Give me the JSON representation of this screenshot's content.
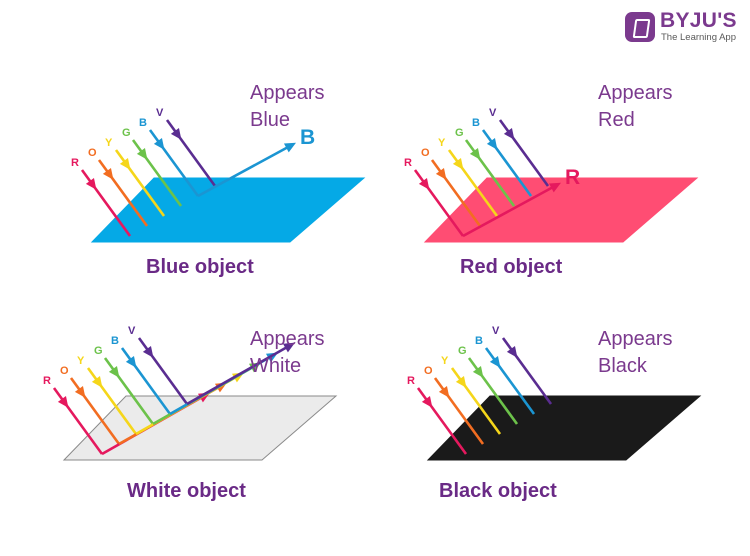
{
  "logo": {
    "name": "BYJU'S",
    "tagline": "The Learning App"
  },
  "colors": {
    "R": "#e5195e",
    "O": "#f26d21",
    "Y": "#f5d61a",
    "G": "#6cc24a",
    "B": "#1b95d2",
    "V": "#5a2d91",
    "text_purple": "#7b3a8e"
  },
  "ray_labels": [
    "R",
    "O",
    "Y",
    "G",
    "B",
    "V"
  ],
  "panels": [
    {
      "id": "blue",
      "appears_line1": "Appears",
      "appears_line2": "Blue",
      "caption": "Blue object",
      "surface_color": "#05a9e6",
      "reflected": [
        "B"
      ],
      "out_letter": "B"
    },
    {
      "id": "red",
      "appears_line1": "Appears",
      "appears_line2": "Red",
      "caption": "Red object",
      "surface_color": "#ff4d73",
      "reflected": [
        "R"
      ],
      "out_letter": "R"
    },
    {
      "id": "white",
      "appears_line1": "Appears",
      "appears_line2": "White",
      "caption": "White object",
      "surface_color": "#ebebeb",
      "reflected": [
        "R",
        "O",
        "Y",
        "G",
        "B",
        "V"
      ],
      "out_letter": ""
    },
    {
      "id": "black",
      "appears_line1": "Appears",
      "appears_line2": "Black",
      "caption": "Black object",
      "surface_color": "#1a1a1a",
      "reflected": [],
      "out_letter": ""
    }
  ]
}
